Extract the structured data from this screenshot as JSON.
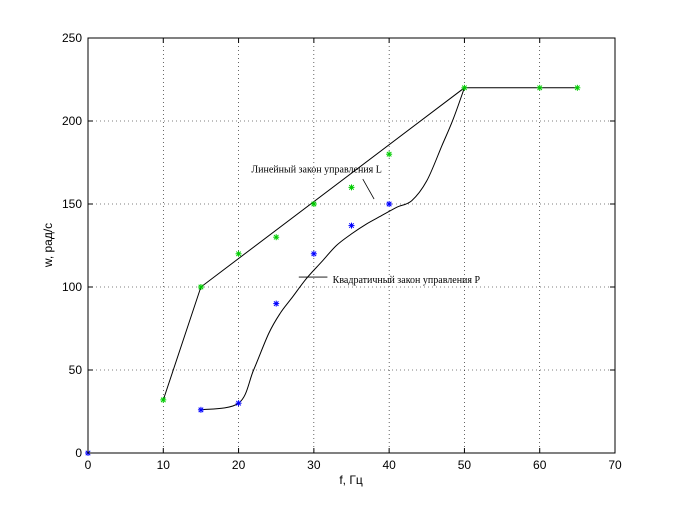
{
  "chart_data": {
    "type": "line",
    "xlabel": "f, Гц",
    "ylabel": "w, рад/с",
    "xlim": [
      0,
      70
    ],
    "ylim": [
      0,
      250
    ],
    "xticks": [
      0,
      10,
      20,
      30,
      40,
      50,
      60,
      70
    ],
    "yticks": [
      0,
      50,
      100,
      150,
      200,
      250
    ],
    "grid": "dotted",
    "curves": [
      {
        "id": "linear",
        "color": "#000000",
        "points": [
          [
            10,
            32
          ],
          [
            15,
            100
          ],
          [
            50,
            220
          ],
          [
            65,
            220
          ]
        ]
      },
      {
        "id": "quadratic",
        "color": "#000000",
        "points": [
          [
            15,
            26
          ],
          [
            20,
            30
          ],
          [
            22,
            50
          ],
          [
            24,
            72
          ],
          [
            25.5,
            84
          ],
          [
            27,
            93
          ],
          [
            29,
            105
          ],
          [
            31,
            115
          ],
          [
            33,
            125
          ],
          [
            35,
            132
          ],
          [
            37,
            138
          ],
          [
            39,
            143
          ],
          [
            41,
            148
          ],
          [
            43,
            152
          ],
          [
            45,
            164
          ],
          [
            47,
            185
          ],
          [
            48.5,
            201
          ],
          [
            50,
            220
          ]
        ]
      }
    ],
    "markers": [
      {
        "id": "green-stars",
        "color": "#00cc00",
        "points": [
          [
            10,
            32
          ],
          [
            15,
            100
          ],
          [
            20,
            120
          ],
          [
            25,
            130
          ],
          [
            30,
            150
          ],
          [
            35,
            160
          ],
          [
            40,
            180
          ],
          [
            50,
            220
          ],
          [
            60,
            220
          ],
          [
            65,
            220
          ]
        ]
      },
      {
        "id": "blue-stars",
        "color": "#0000ff",
        "points": [
          [
            0,
            0
          ],
          [
            15,
            26
          ],
          [
            20,
            30
          ],
          [
            25,
            90
          ],
          [
            30,
            120
          ],
          [
            35,
            137
          ],
          [
            40,
            150
          ]
        ]
      }
    ],
    "annotations": [
      {
        "id": "linear-law",
        "text": "Линейный закон управления L",
        "text_at": [
          21.7,
          169
        ],
        "pointer_from": [
          36.5,
          165
        ],
        "pointer_to": [
          38,
          153
        ]
      },
      {
        "id": "quadratic-law",
        "text": "Квадратичный закон управления P",
        "text_at": [
          32.5,
          102.5
        ],
        "pointer_from": [
          31.8,
          106
        ],
        "pointer_to": [
          28,
          106
        ]
      }
    ]
  }
}
